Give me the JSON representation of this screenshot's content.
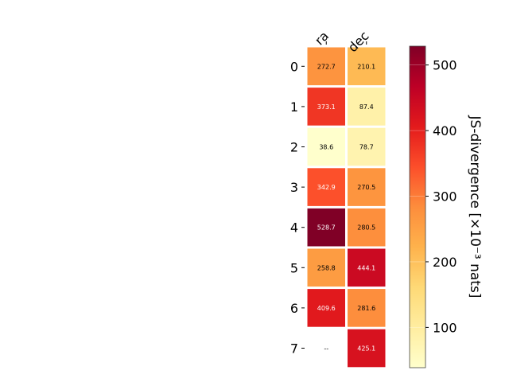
{
  "chart_data": {
    "type": "heatmap",
    "columns": [
      "ra",
      "dec"
    ],
    "rows": [
      "0",
      "1",
      "2",
      "3",
      "4",
      "5",
      "6",
      "7"
    ],
    "values": [
      [
        272.7,
        210.1
      ],
      [
        373.1,
        87.4
      ],
      [
        38.6,
        78.7
      ],
      [
        342.9,
        270.5
      ],
      [
        528.7,
        280.5
      ],
      [
        258.8,
        444.1
      ],
      [
        409.6,
        281.6
      ],
      [
        null,
        425.1
      ]
    ],
    "cell_labels": [
      [
        "272.7",
        "210.1"
      ],
      [
        "373.1",
        "87.4"
      ],
      [
        "38.6",
        "78.7"
      ],
      [
        "342.9",
        "270.5"
      ],
      [
        "528.7",
        "280.5"
      ],
      [
        "258.8",
        "444.1"
      ],
      [
        "409.6",
        "281.6"
      ],
      [
        "--",
        "425.1"
      ]
    ],
    "missing_label": "--",
    "colormap": "YlOrRd",
    "colorbar": {
      "label": "JS-divergence [×10⁻³ nats]",
      "range": [
        38.6,
        528.7
      ],
      "ticks": [
        100,
        200,
        300,
        400,
        500
      ]
    },
    "grid": false
  }
}
